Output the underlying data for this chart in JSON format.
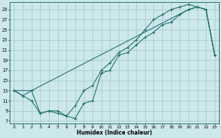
{
  "xlabel": "Humidex (Indice chaleur)",
  "bg_color": "#cde8ea",
  "grid_color": "#aacdd1",
  "line_color": "#1a6b6b",
  "xlim": [
    -0.5,
    23.5
  ],
  "ylim": [
    6.5,
    30.5
  ],
  "xticks": [
    0,
    1,
    2,
    3,
    4,
    5,
    6,
    7,
    8,
    9,
    10,
    11,
    12,
    13,
    14,
    15,
    16,
    17,
    18,
    19,
    20,
    21,
    22,
    23
  ],
  "yticks": [
    7,
    9,
    11,
    13,
    15,
    17,
    19,
    21,
    23,
    25,
    27,
    29
  ],
  "line1_x": [
    0,
    1,
    2,
    3,
    4,
    5,
    6,
    7,
    8,
    9,
    10,
    11,
    12,
    13,
    14,
    15,
    16,
    17,
    18,
    19,
    20,
    21,
    22,
    23
  ],
  "line1_y": [
    13,
    12,
    11,
    8.5,
    9,
    8.5,
    8,
    7.5,
    10.5,
    11,
    16.5,
    17,
    20,
    20.5,
    22,
    23.5,
    24.5,
    26,
    26.5,
    28,
    29,
    29.5,
    29,
    20
  ],
  "line2_x": [
    0,
    2,
    20,
    21,
    22,
    23
  ],
  "line2_y": [
    13,
    13,
    29,
    29.5,
    29,
    20
  ],
  "line3_x": [
    0,
    1,
    2,
    3,
    4,
    5,
    6,
    7,
    8,
    9,
    10,
    11,
    12,
    13,
    14,
    15,
    16,
    17,
    18,
    19,
    20,
    21,
    22,
    23
  ],
  "line3_y": [
    13,
    12,
    13,
    8.5,
    9,
    9,
    8,
    10,
    13,
    14,
    17,
    18.5,
    20.5,
    21.5,
    23,
    25,
    27,
    28,
    29,
    29.5,
    30,
    29.5,
    29,
    20
  ]
}
